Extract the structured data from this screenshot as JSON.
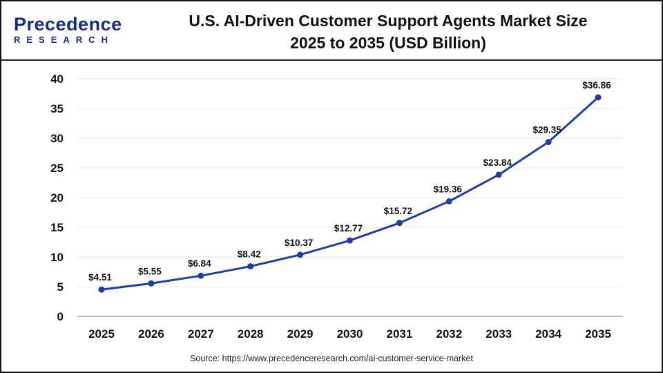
{
  "logo": {
    "text_top": "Precedence",
    "text_bottom": "RESEARCH"
  },
  "title_line1": "U.S. AI-Driven Customer Support Agents Market Size",
  "title_line2": "2025 to 2035 (USD Billion)",
  "source": "Source: https://www.precedenceresearch.com/ai-customer-service-market",
  "chart_data": {
    "type": "line",
    "categories": [
      "2025",
      "2026",
      "2027",
      "2028",
      "2029",
      "2030",
      "2031",
      "2032",
      "2033",
      "2034",
      "2035"
    ],
    "values": [
      4.51,
      5.55,
      6.84,
      8.42,
      10.37,
      12.77,
      15.72,
      19.36,
      23.84,
      29.35,
      36.86
    ],
    "data_labels": [
      "$4.51",
      "$5.55",
      "$6.84",
      "$8.42",
      "$10.37",
      "$12.77",
      "$15.72",
      "$19.36",
      "$23.84",
      "$29.35",
      "$36.86"
    ],
    "ylim": [
      0,
      40
    ],
    "yticks": [
      0,
      5,
      10,
      15,
      20,
      25,
      30,
      35,
      40
    ],
    "grid": true,
    "line_color": "#1f3f9e",
    "xlabel": "",
    "ylabel": ""
  }
}
